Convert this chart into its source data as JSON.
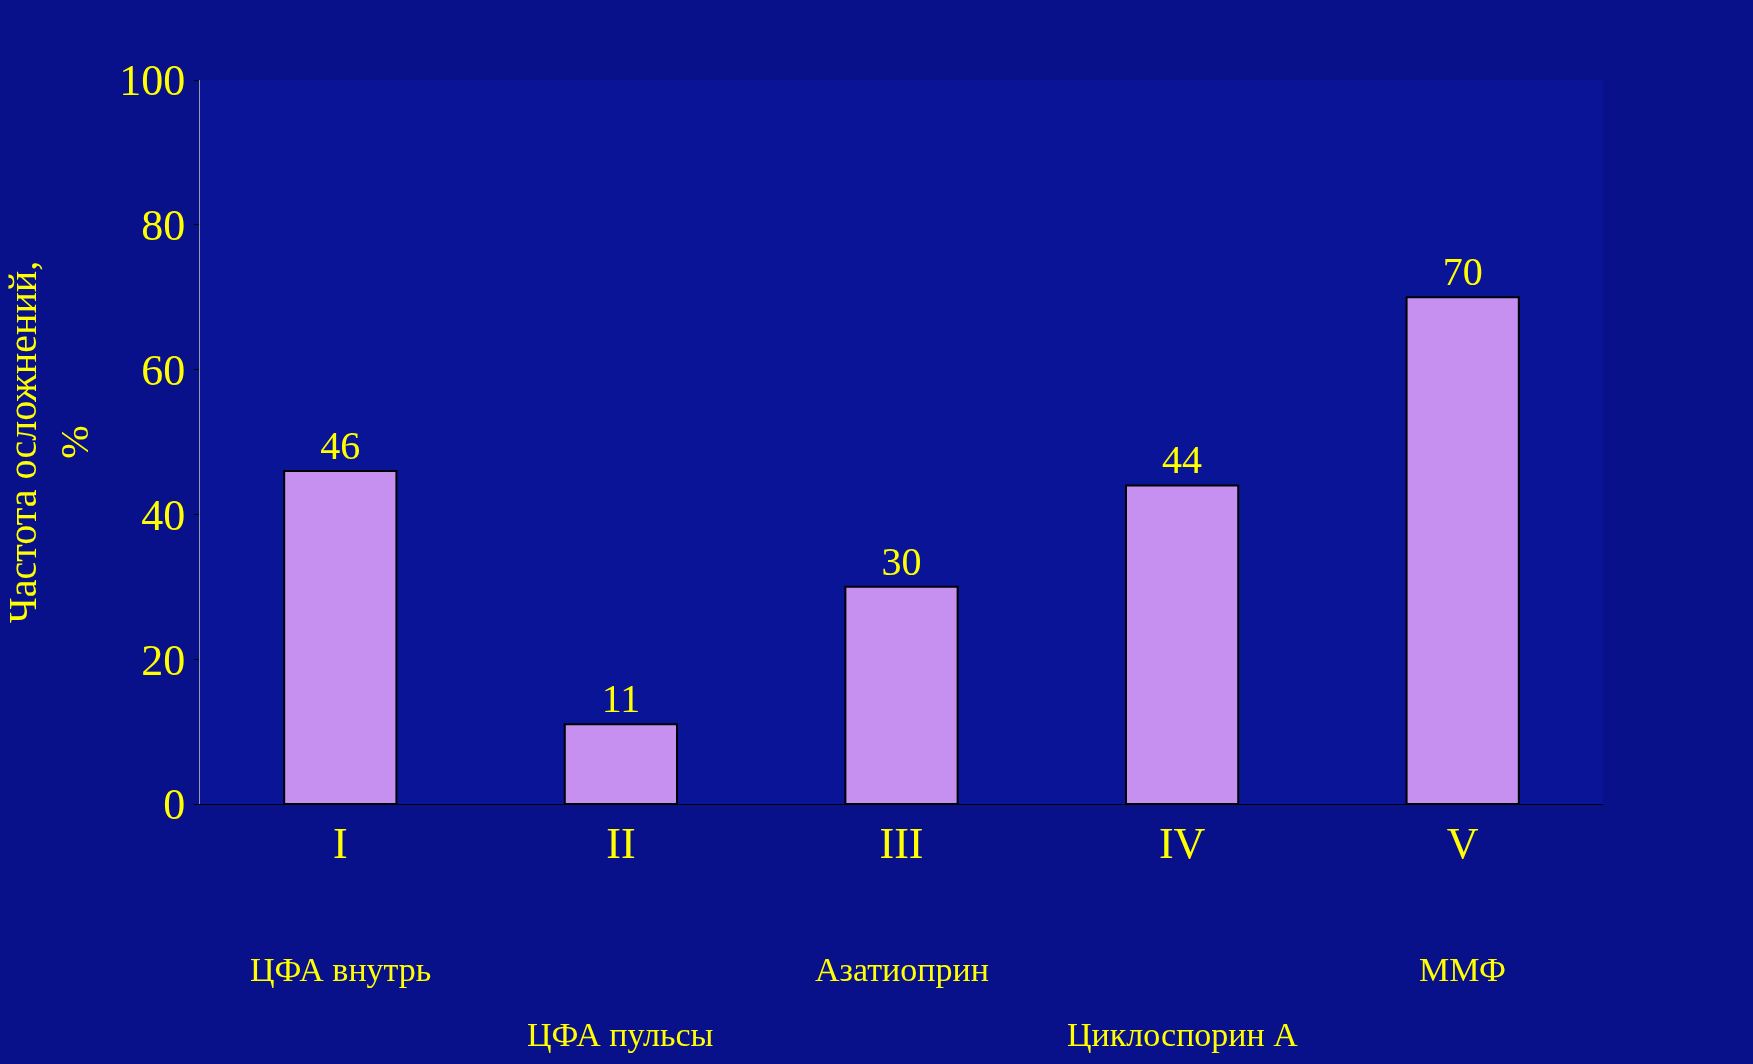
{
  "chart_data": {
    "type": "bar",
    "ylabel": "Частота осложнений,\n%",
    "categories": [
      "I",
      "II",
      "III",
      "IV",
      "V"
    ],
    "values": [
      46,
      11,
      30,
      44,
      70
    ],
    "color": "#c690f0",
    "ylim": [
      0,
      100
    ],
    "yticks": [
      0,
      20,
      40,
      60,
      80,
      100
    ],
    "grid": false,
    "data_labels": true,
    "annotations": [
      "ЦФА внутрь",
      "ЦФА пульсы",
      "Азатиоприн",
      "Циклоспорин А",
      "ММФ"
    ]
  }
}
